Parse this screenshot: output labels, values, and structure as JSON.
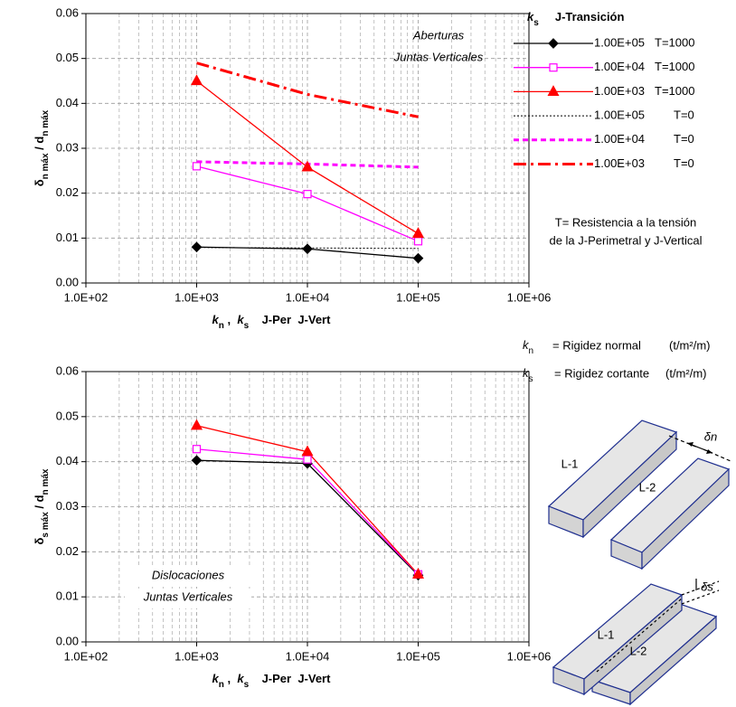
{
  "chart_data": [
    {
      "type": "line",
      "log_x": true,
      "grid": true,
      "xlabel": [
        {
          "text": "k",
          "style": "italic"
        },
        {
          "text": "n",
          "style": "sub"
        },
        {
          "text": " ,  ",
          "style": "normal"
        },
        {
          "text": "k",
          "style": "italic"
        },
        {
          "text": "s",
          "style": "sub"
        },
        {
          "text": "    J-Per  J-Vert",
          "style": "normal"
        }
      ],
      "ylabel": [
        {
          "text": "δ",
          "style": "normal"
        },
        {
          "text": "n máx",
          "style": "sub"
        },
        {
          "text": " / d",
          "style": "normal"
        },
        {
          "text": "n máx",
          "style": "sub"
        }
      ],
      "annotations": [
        "Aberturas",
        "Juntas Verticales"
      ],
      "x": [
        1000,
        10000,
        100000
      ],
      "xlim": [
        100,
        1000000
      ],
      "xticks": [
        {
          "value": 100,
          "label": "1.0E+02"
        },
        {
          "value": 1000,
          "label": "1.0E+03"
        },
        {
          "value": 10000,
          "label": "1.0E+04"
        },
        {
          "value": 100000,
          "label": "1.0E+05"
        },
        {
          "value": 1000000,
          "label": "1.0E+06"
        }
      ],
      "xminor_ticks": [
        200,
        300,
        400,
        500,
        600,
        700,
        800,
        900,
        2000,
        3000,
        4000,
        5000,
        6000,
        7000,
        8000,
        9000,
        20000,
        30000,
        40000,
        50000,
        60000,
        70000,
        80000,
        90000,
        200000,
        300000,
        400000,
        500000,
        600000,
        700000,
        800000,
        900000
      ],
      "ylim": [
        0,
        0.06
      ],
      "yticks": [
        {
          "value": 0,
          "label": "0.00"
        },
        {
          "value": 0.01,
          "label": "0.01"
        },
        {
          "value": 0.02,
          "label": "0.02"
        },
        {
          "value": 0.03,
          "label": "0.03"
        },
        {
          "value": 0.04,
          "label": "0.04"
        },
        {
          "value": 0.05,
          "label": "0.05"
        },
        {
          "value": 0.06,
          "label": "0.06"
        }
      ],
      "series": [
        {
          "name": "1.00E+05",
          "t_label": "T=1000",
          "color": "#000000",
          "line_style": "solid",
          "marker": "diamond",
          "values": [
            0.008,
            0.0076,
            0.0055
          ]
        },
        {
          "name": "1.00E+04",
          "t_label": "T=1000",
          "color": "#ff00ff",
          "line_style": "solid",
          "marker": "square",
          "values": [
            0.026,
            0.0198,
            0.0093
          ]
        },
        {
          "name": "1.00E+03",
          "t_label": "T=1000",
          "color": "#ff0000",
          "line_style": "solid",
          "marker": "triangle",
          "values": [
            0.045,
            0.0258,
            0.011
          ]
        },
        {
          "name": "1.00E+05",
          "t_label": "T=0",
          "color": "#000000",
          "line_style": "dotted",
          "marker": "none",
          "values": [
            0.0079,
            0.0078,
            0.0077
          ]
        },
        {
          "name": "1.00E+04",
          "t_label": "T=0",
          "color": "#ff00ff",
          "line_style": "dashed",
          "marker": "none",
          "values": [
            0.027,
            0.0265,
            0.0258
          ]
        },
        {
          "name": "1.00E+03",
          "t_label": "T=0",
          "color": "#ff0000",
          "line_style": "dashdot",
          "marker": "none",
          "values": [
            0.049,
            0.042,
            0.037
          ]
        }
      ]
    },
    {
      "type": "line",
      "log_x": true,
      "grid": true,
      "xlabel": [
        {
          "text": "k",
          "style": "italic"
        },
        {
          "text": "n",
          "style": "sub"
        },
        {
          "text": " ,  ",
          "style": "normal"
        },
        {
          "text": "k",
          "style": "italic"
        },
        {
          "text": "s",
          "style": "sub"
        },
        {
          "text": "    J-Per  J-Vert",
          "style": "normal"
        }
      ],
      "ylabel": [
        {
          "text": "δ",
          "style": "normal"
        },
        {
          "text": "s máx",
          "style": "sub"
        },
        {
          "text": " / d",
          "style": "normal"
        },
        {
          "text": "n máx",
          "style": "sub"
        }
      ],
      "annotations": [
        "Dislocaciones",
        "Juntas Verticales"
      ],
      "x": [
        1000,
        10000,
        100000
      ],
      "xlim": [
        100,
        1000000
      ],
      "xticks": [
        {
          "value": 100,
          "label": "1.0E+02"
        },
        {
          "value": 1000,
          "label": "1.0E+03"
        },
        {
          "value": 10000,
          "label": "1.0E+04"
        },
        {
          "value": 100000,
          "label": "1.0E+05"
        },
        {
          "value": 1000000,
          "label": "1.0E+06"
        }
      ],
      "xminor_ticks": [
        200,
        300,
        400,
        500,
        600,
        700,
        800,
        900,
        2000,
        3000,
        4000,
        5000,
        6000,
        7000,
        8000,
        9000,
        20000,
        30000,
        40000,
        50000,
        60000,
        70000,
        80000,
        90000,
        200000,
        300000,
        400000,
        500000,
        600000,
        700000,
        800000,
        900000
      ],
      "ylim": [
        0,
        0.06
      ],
      "yticks": [
        {
          "value": 0,
          "label": "0.00"
        },
        {
          "value": 0.01,
          "label": "0.01"
        },
        {
          "value": 0.02,
          "label": "0.02"
        },
        {
          "value": 0.03,
          "label": "0.03"
        },
        {
          "value": 0.04,
          "label": "0.04"
        },
        {
          "value": 0.05,
          "label": "0.05"
        },
        {
          "value": 0.06,
          "label": "0.06"
        }
      ],
      "series": [
        {
          "color": "#000000",
          "line_style": "solid",
          "marker": "diamond",
          "values": [
            0.0403,
            0.0396,
            0.0148
          ]
        },
        {
          "color": "#ff00ff",
          "line_style": "solid",
          "marker": "square",
          "values": [
            0.0428,
            0.0405,
            0.015
          ]
        },
        {
          "color": "#ff0000",
          "line_style": "solid",
          "marker": "triangle",
          "values": [
            0.048,
            0.0422,
            0.015
          ]
        }
      ]
    }
  ],
  "legend": {
    "title": [
      {
        "text": "k",
        "style": "italic"
      },
      {
        "text": "s",
        "style": "sub"
      },
      {
        "text": "     J-Transición",
        "style": "normal"
      }
    ]
  },
  "note": [
    "T= Resistencia a la tensión",
    "de la J-Perimetral y J-Vertical"
  ],
  "definitions": [
    {
      "parts": [
        {
          "text": "k",
          "style": "italic"
        },
        {
          "text": "n",
          "style": "sub"
        }
      ],
      "text": "= Rigidez normal",
      "unit": "(t/m²/m)"
    },
    {
      "parts": [
        {
          "text": "k",
          "style": "italic"
        },
        {
          "text": "s",
          "style": "sub"
        }
      ],
      "text": "= Rigidez cortante",
      "unit": "(t/m²/m)"
    }
  ],
  "diagrams": [
    {
      "labels": [
        "L-1",
        "L-2"
      ],
      "delta": "δn"
    },
    {
      "labels": [
        "L-1",
        "L-2"
      ],
      "delta": "δs"
    }
  ]
}
